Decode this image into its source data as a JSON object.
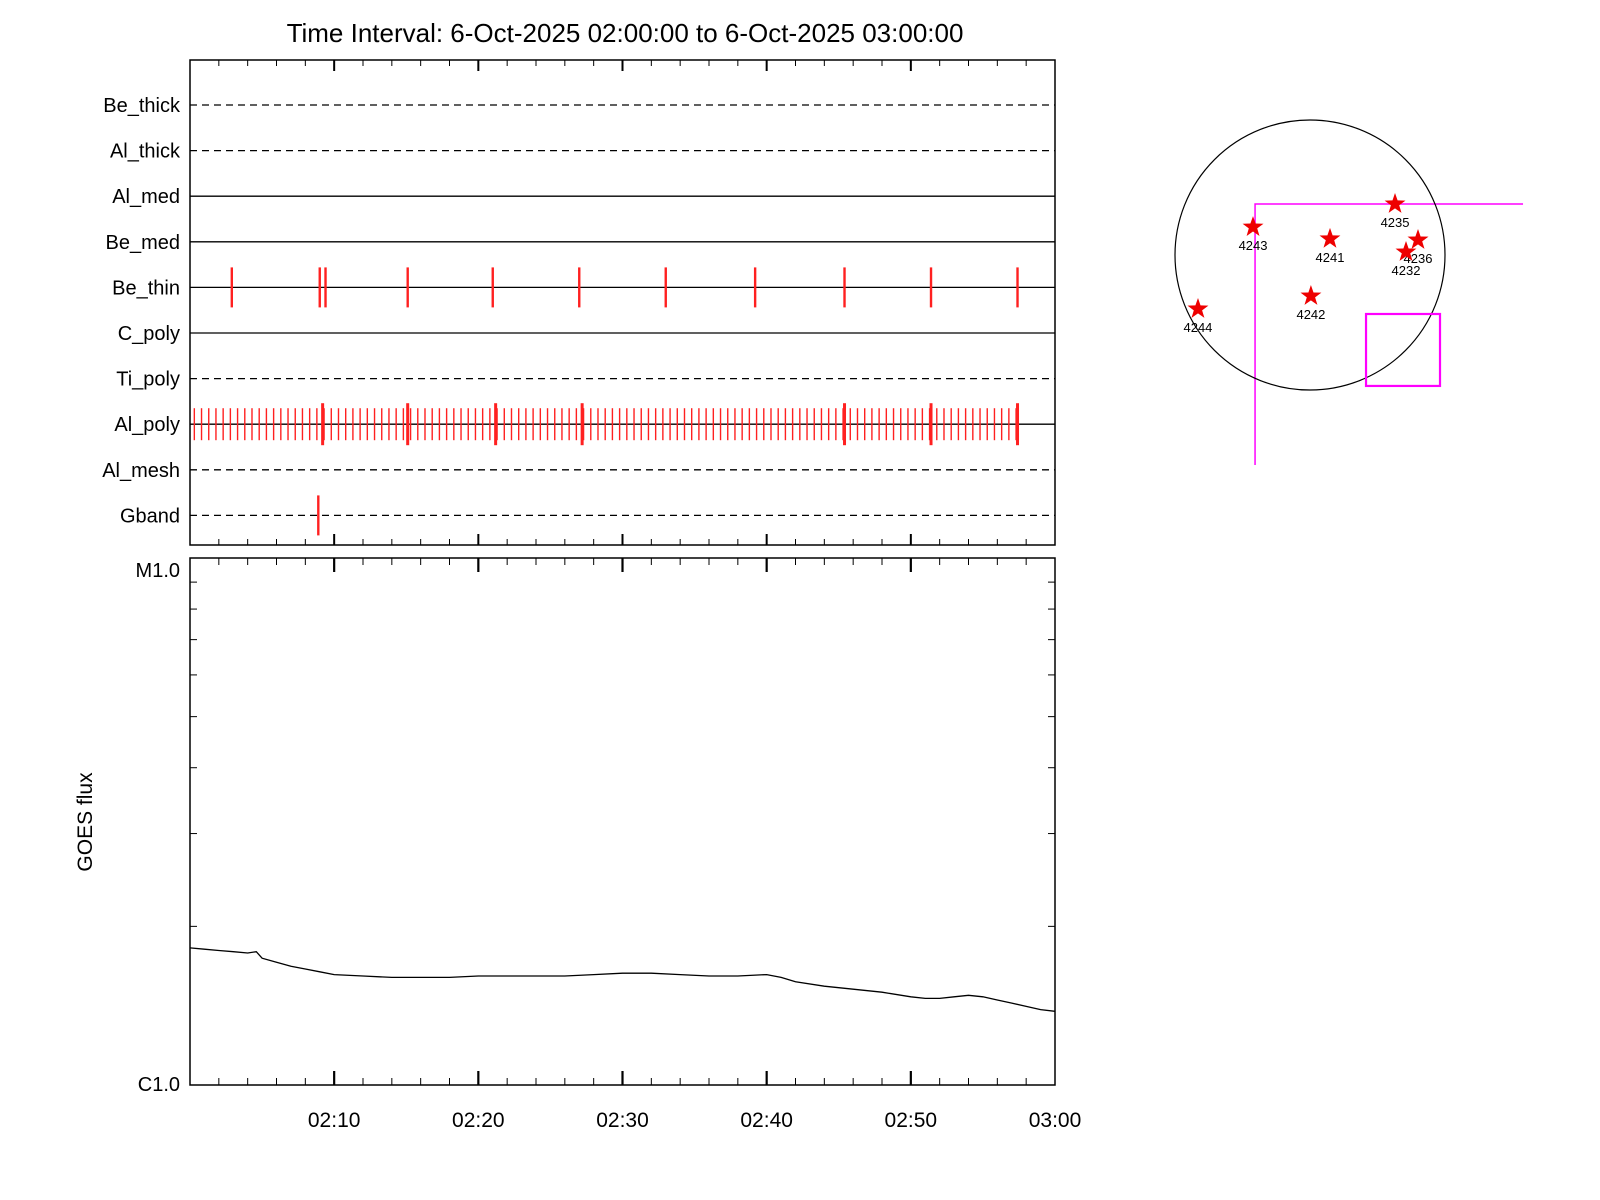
{
  "title": "Time Interval:  6-Oct-2025 02:00:00 to  6-Oct-2025 03:00:00",
  "colors": {
    "exposure_tick": "#ff2020",
    "star": "#ee0000",
    "annotation": "#ff00ff",
    "axis": "#000000"
  },
  "chart_data": [
    {
      "type": "timeline",
      "name": "filter-exposure-timeline",
      "x_range_labels": [
        "02:00",
        "03:00"
      ],
      "x_range_minutes": [
        0,
        60
      ],
      "rows": [
        {
          "label": "Be_thick",
          "line": "dashed",
          "ticks_min": []
        },
        {
          "label": "Al_thick",
          "line": "dashed",
          "ticks_min": []
        },
        {
          "label": "Al_med",
          "line": "solid",
          "ticks_min": []
        },
        {
          "label": "Be_med",
          "line": "solid",
          "ticks_min": []
        },
        {
          "label": "Be_thin",
          "line": "solid",
          "ticks_min": [
            2.9,
            9.0,
            9.4,
            15.1,
            21.0,
            27.0,
            33.0,
            39.2,
            45.4,
            51.4,
            57.4
          ]
        },
        {
          "label": "C_poly",
          "line": "solid",
          "ticks_min": []
        },
        {
          "label": "Ti_poly",
          "line": "dashed",
          "ticks_min": []
        },
        {
          "label": "Al_poly",
          "line": "solid",
          "ticks_min": [],
          "dense_ticks": {
            "start_min": 0.3,
            "end_min": 57.4,
            "interval_min": 0.5
          },
          "major_ticks_min": [
            9.2,
            15.1,
            21.2,
            27.2,
            45.4,
            51.4,
            57.4
          ]
        },
        {
          "label": "Al_mesh",
          "line": "dashed",
          "ticks_min": []
        },
        {
          "label": "Gband",
          "line": "dashed",
          "ticks_min": [
            8.9
          ]
        }
      ]
    },
    {
      "type": "line",
      "name": "goes-flux-plot",
      "ylabel": "GOES flux",
      "y_top_label": "M1.0",
      "y_bottom_label": "C1.0",
      "y_scale": "log",
      "y_range_wm2": [
        1e-06,
        1e-05
      ],
      "x_tick_labels": [
        "02:10",
        "02:20",
        "02:30",
        "02:40",
        "02:50",
        "03:00"
      ],
      "x_tick_minutes": [
        10,
        20,
        30,
        40,
        50,
        60
      ],
      "series": [
        {
          "name": "GOES flux",
          "x_min": [
            0,
            1,
            2,
            3,
            4,
            4.6,
            5,
            6,
            7,
            8,
            9,
            10,
            12,
            14,
            16,
            18,
            20,
            22,
            24,
            26,
            28,
            30,
            32,
            34,
            36,
            38,
            40,
            41,
            42,
            44,
            46,
            48,
            50,
            51,
            52,
            53,
            54,
            55,
            56,
            57,
            58,
            59,
            60
          ],
          "flux_c_units": [
            1.82,
            1.81,
            1.8,
            1.79,
            1.78,
            1.79,
            1.74,
            1.71,
            1.68,
            1.66,
            1.64,
            1.62,
            1.61,
            1.6,
            1.6,
            1.6,
            1.61,
            1.61,
            1.61,
            1.61,
            1.62,
            1.63,
            1.63,
            1.62,
            1.61,
            1.61,
            1.62,
            1.6,
            1.57,
            1.54,
            1.52,
            1.5,
            1.47,
            1.46,
            1.46,
            1.47,
            1.48,
            1.47,
            1.45,
            1.43,
            1.41,
            1.39,
            1.38
          ]
        }
      ]
    },
    {
      "type": "solar_map",
      "name": "solar-disk-map",
      "active_regions": [
        {
          "id": "4235",
          "x": 0.63,
          "y": -0.378
        },
        {
          "id": "4243",
          "x": -0.422,
          "y": -0.207
        },
        {
          "id": "4241",
          "x": 0.148,
          "y": -0.119
        },
        {
          "id": "4236",
          "x": 0.8,
          "y": -0.111
        },
        {
          "id": "4232",
          "x": 0.711,
          "y": -0.022
        },
        {
          "id": "4242",
          "x": 0.007,
          "y": 0.304
        },
        {
          "id": "4244",
          "x": -0.83,
          "y": 0.4
        }
      ],
      "fov_box": {
        "x": 0.415,
        "y": 0.437,
        "w": 0.548,
        "h": 0.533
      },
      "annotation_lines": {
        "corner": [
          -0.407,
          -0.378
        ],
        "h_end_x": 1.578,
        "v_end_y": 1.556
      }
    }
  ]
}
